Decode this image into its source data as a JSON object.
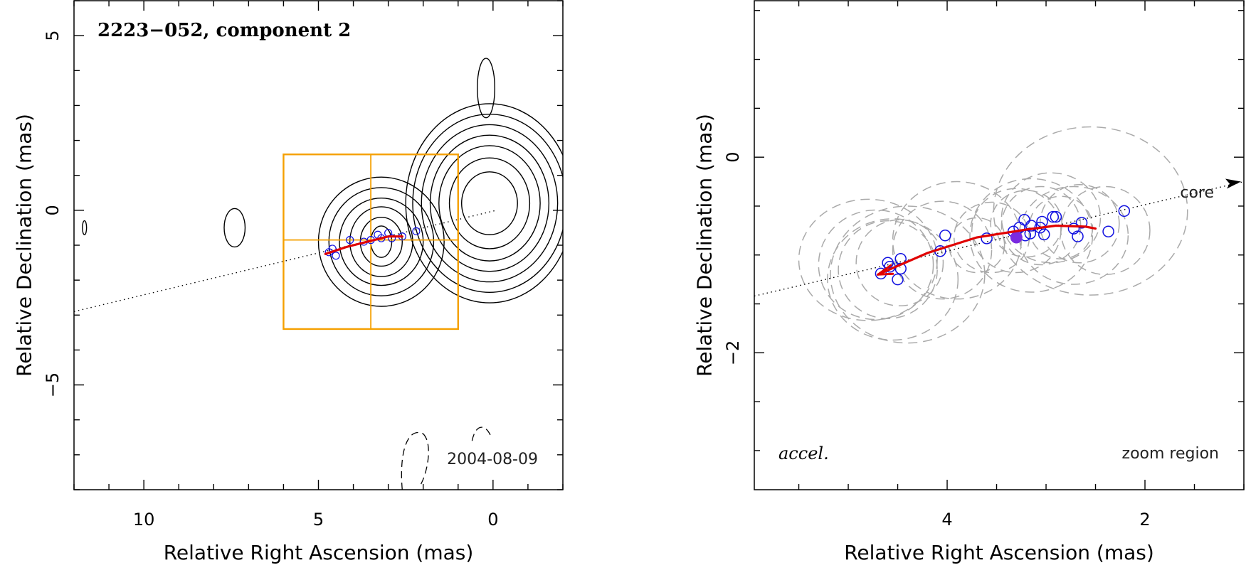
{
  "chart_data": [
    {
      "type": "scatter",
      "panel": "left",
      "title": "2223−052, component 2",
      "xlabel": "Relative Right Ascension (mas)",
      "ylabel": "Relative Declination (mas)",
      "xlim": [
        12.0,
        -2.0
      ],
      "ylim": [
        -8.0,
        6.0
      ],
      "xticks_major": [
        10,
        5,
        0
      ],
      "xtick_labels": [
        "10",
        "5",
        "0"
      ],
      "yticks_major": [
        5,
        0,
        -5
      ],
      "ytick_labels": [
        "5",
        "0",
        "−5"
      ],
      "annotation_epoch": "2004-08-09",
      "colors": {
        "contour": "#000000",
        "zoom_box": "#f5a000",
        "fit_track": "#e00000",
        "component": "#1010e0",
        "axis_line": "#000000"
      },
      "zoom_box": {
        "x": [
          6.0,
          1.0
        ],
        "y": [
          -3.4,
          1.6
        ],
        "cross_x": 3.5,
        "cross_y": -0.85
      },
      "axis_line": {
        "x": [
          12.0,
          -0.1
        ],
        "y": [
          -2.9,
          0.0
        ]
      },
      "contours": [
        {
          "cx": 0.1,
          "cy": 0.2,
          "rx": [
            0.8,
            1.15,
            1.45,
            1.7,
            1.95,
            2.2,
            2.4
          ],
          "ry": [
            0.9,
            1.3,
            1.65,
            1.95,
            2.25,
            2.55,
            2.85
          ]
        },
        {
          "cx": 3.2,
          "cy": -0.9,
          "rx": [
            0.3,
            0.6,
            0.9,
            1.2,
            1.5,
            1.8
          ],
          "ry": [
            0.45,
            0.7,
            1.0,
            1.25,
            1.55,
            1.85
          ]
        },
        {
          "cx": 7.4,
          "cy": -0.5,
          "rx": [
            0.3
          ],
          "ry": [
            0.55
          ]
        },
        {
          "cx": 0.2,
          "cy": 3.5,
          "rx": [
            0.25
          ],
          "ry": [
            0.85
          ]
        },
        {
          "cx": 11.7,
          "cy": -0.5,
          "rx": [
            0.06
          ],
          "ry": [
            0.2
          ]
        }
      ],
      "components": [
        {
          "x": 4.7,
          "y": -1.2
        },
        {
          "x": 4.6,
          "y": -1.1
        },
        {
          "x": 4.5,
          "y": -1.3
        },
        {
          "x": 4.1,
          "y": -0.85
        },
        {
          "x": 3.7,
          "y": -0.9
        },
        {
          "x": 3.5,
          "y": -0.85
        },
        {
          "x": 3.3,
          "y": -0.7
        },
        {
          "x": 3.2,
          "y": -0.8
        },
        {
          "x": 3.0,
          "y": -0.65
        },
        {
          "x": 2.9,
          "y": -0.8
        },
        {
          "x": 2.6,
          "y": -0.75
        },
        {
          "x": 2.2,
          "y": -0.6
        }
      ],
      "fit_track": {
        "x": [
          4.8,
          4.2,
          3.6,
          3.0,
          2.6
        ],
        "y": [
          -1.25,
          -1.05,
          -0.9,
          -0.75,
          -0.75
        ]
      }
    },
    {
      "type": "scatter",
      "panel": "right",
      "title": "",
      "xlabel": "Relative Right Ascension (mas)",
      "ylabel": "Relative Declination (mas)",
      "xlim": [
        5.95,
        1.0
      ],
      "ylim": [
        -3.4,
        1.6
      ],
      "xticks_major": [
        4,
        2
      ],
      "xtick_labels": [
        "4",
        "2"
      ],
      "yticks_major": [
        0,
        -2
      ],
      "ytick_labels": [
        "0",
        "−2"
      ],
      "annotation_label": "accel.",
      "annotation_region": "zoom region",
      "annotation_core": "core",
      "colors": {
        "ellipse": "#aaaaaa",
        "fit_track": "#e00000",
        "component": "#1010e0",
        "highlight": "#7b2be0",
        "axis_line": "#000000"
      },
      "axis_line": {
        "x": [
          5.95,
          1.0
        ],
        "y": [
          -1.42,
          -0.25
        ]
      },
      "core_direction_arrow": {
        "x": [
          1.15,
          1.0
        ],
        "y": [
          -0.28,
          -0.25
        ]
      },
      "components": [
        {
          "x": 4.67,
          "y": -1.19
        },
        {
          "x": 4.6,
          "y": -1.08
        },
        {
          "x": 4.58,
          "y": -1.12
        },
        {
          "x": 4.5,
          "y": -1.25
        },
        {
          "x": 4.47,
          "y": -1.14
        },
        {
          "x": 4.47,
          "y": -1.04
        },
        {
          "x": 4.07,
          "y": -0.96
        },
        {
          "x": 4.02,
          "y": -0.8
        },
        {
          "x": 3.6,
          "y": -0.83
        },
        {
          "x": 3.33,
          "y": -0.76
        },
        {
          "x": 3.27,
          "y": -0.72
        },
        {
          "x": 3.22,
          "y": -0.64
        },
        {
          "x": 3.21,
          "y": -0.8
        },
        {
          "x": 3.16,
          "y": -0.78
        },
        {
          "x": 3.15,
          "y": -0.7
        },
        {
          "x": 3.06,
          "y": -0.72
        },
        {
          "x": 3.04,
          "y": -0.66
        },
        {
          "x": 3.02,
          "y": -0.79
        },
        {
          "x": 2.93,
          "y": -0.61
        },
        {
          "x": 2.9,
          "y": -0.61
        },
        {
          "x": 2.72,
          "y": -0.73
        },
        {
          "x": 2.68,
          "y": -0.81
        },
        {
          "x": 2.64,
          "y": -0.67
        },
        {
          "x": 2.37,
          "y": -0.76
        },
        {
          "x": 2.21,
          "y": -0.55
        }
      ],
      "highlight_component": {
        "x": 3.3,
        "y": -0.82
      },
      "fit_track": {
        "x": [
          4.7,
          4.2,
          3.7,
          3.2,
          2.9,
          2.6,
          2.5
        ],
        "y": [
          -1.2,
          -0.98,
          -0.82,
          -0.74,
          -0.7,
          -0.71,
          -0.73
        ]
      },
      "uncertainty_ellipses": [
        {
          "cx": 4.8,
          "cy": -1.05,
          "rx": 0.7,
          "ry": 0.62
        },
        {
          "cx": 4.72,
          "cy": -1.1,
          "rx": 0.58,
          "ry": 0.56
        },
        {
          "cx": 4.6,
          "cy": -1.15,
          "rx": 0.5,
          "ry": 0.5
        },
        {
          "cx": 4.55,
          "cy": -1.25,
          "rx": 0.66,
          "ry": 0.62
        },
        {
          "cx": 4.48,
          "cy": -1.08,
          "rx": 0.44,
          "ry": 0.44
        },
        {
          "cx": 4.4,
          "cy": -1.2,
          "rx": 0.78,
          "ry": 0.7
        },
        {
          "cx": 4.05,
          "cy": -0.95,
          "rx": 0.5,
          "ry": 0.5
        },
        {
          "cx": 3.9,
          "cy": -0.85,
          "rx": 0.65,
          "ry": 0.6
        },
        {
          "cx": 3.55,
          "cy": -0.82,
          "rx": 0.38,
          "ry": 0.36
        },
        {
          "cx": 3.3,
          "cy": -0.75,
          "rx": 0.45,
          "ry": 0.43
        },
        {
          "cx": 3.2,
          "cy": -0.68,
          "rx": 0.36,
          "ry": 0.34
        },
        {
          "cx": 3.15,
          "cy": -0.8,
          "rx": 0.62,
          "ry": 0.58
        },
        {
          "cx": 3.05,
          "cy": -0.7,
          "rx": 0.4,
          "ry": 0.4
        },
        {
          "cx": 2.95,
          "cy": -0.62,
          "rx": 0.5,
          "ry": 0.46
        },
        {
          "cx": 2.85,
          "cy": -0.72,
          "rx": 0.32,
          "ry": 0.32
        },
        {
          "cx": 2.72,
          "cy": -0.8,
          "rx": 0.55,
          "ry": 0.5
        },
        {
          "cx": 2.66,
          "cy": -0.68,
          "rx": 0.4,
          "ry": 0.4
        },
        {
          "cx": 2.55,
          "cy": -0.55,
          "rx": 0.98,
          "ry": 0.86
        },
        {
          "cx": 2.4,
          "cy": -0.75,
          "rx": 0.45,
          "ry": 0.45
        },
        {
          "cx": 3.7,
          "cy": -0.9,
          "rx": 0.28,
          "ry": 0.28
        }
      ]
    }
  ]
}
